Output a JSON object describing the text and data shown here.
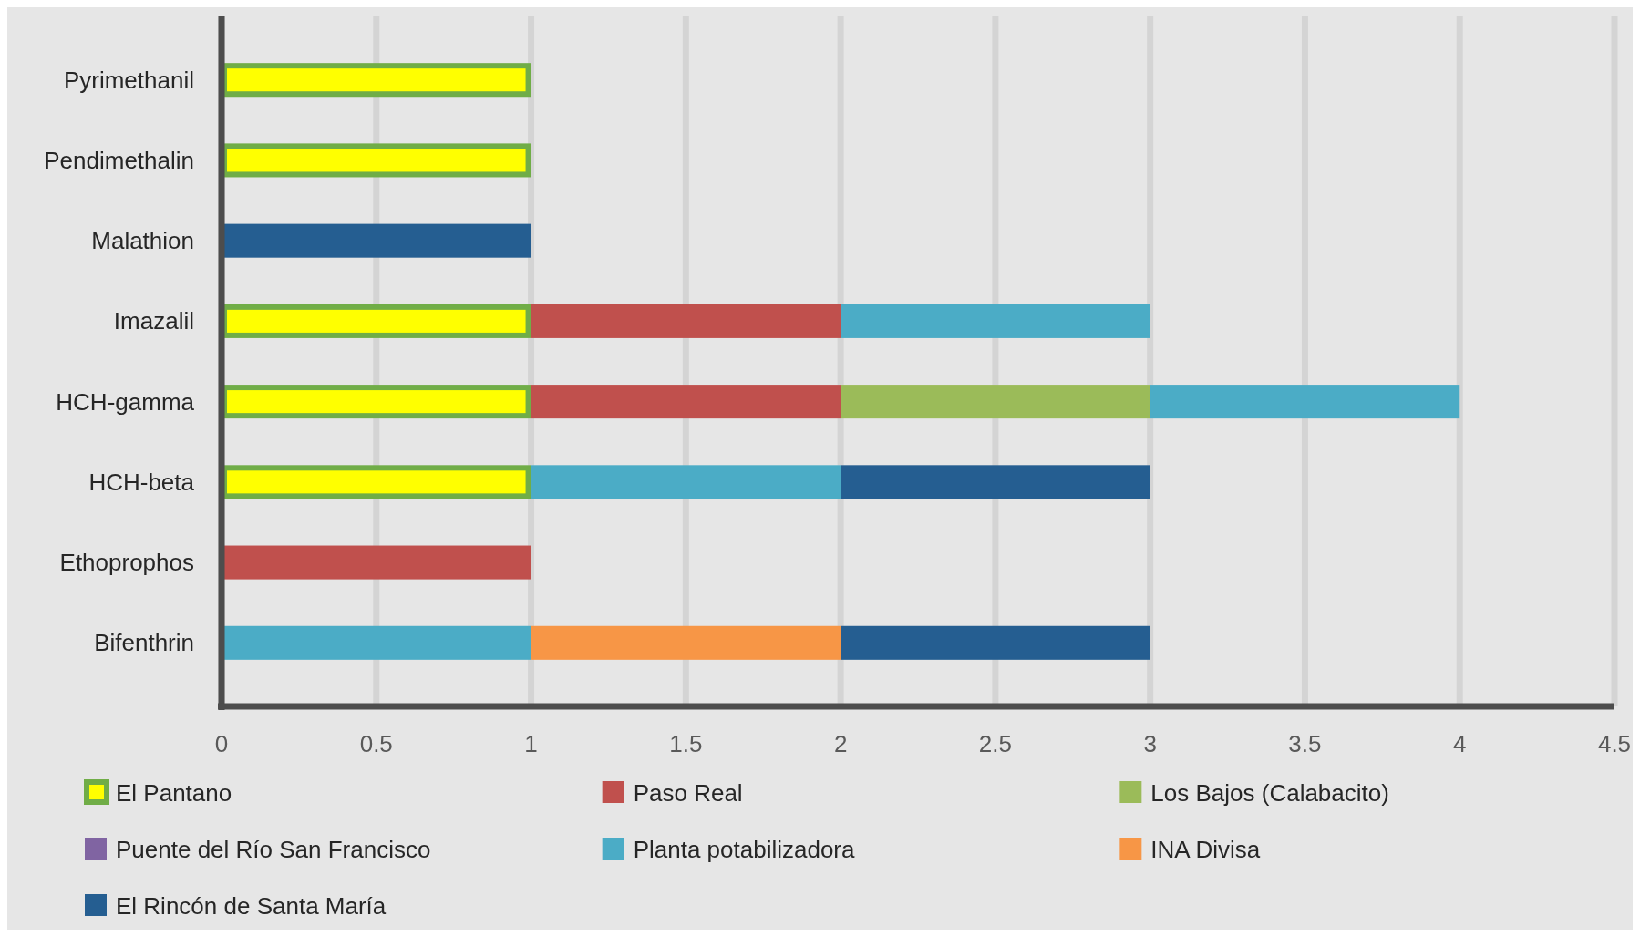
{
  "chart_data": {
    "type": "bar",
    "orientation": "horizontal",
    "stacked": true,
    "categories": [
      "Pyrimethanil",
      "Pendimethalin",
      "Malathion",
      "Imazalil",
      "HCH-gamma",
      "HCH-beta",
      "Ethoprophos",
      "Bifenthrin"
    ],
    "series": [
      {
        "name": "El Pantano",
        "color": "#ffff00",
        "values": [
          1,
          1,
          null,
          1,
          1,
          1,
          null,
          null
        ]
      },
      {
        "name": "Paso Real",
        "color": "#c0504d",
        "values": [
          null,
          null,
          null,
          1,
          1,
          null,
          1,
          null
        ]
      },
      {
        "name": "Los Bajos (Calabacito)",
        "color": "#9bbb59",
        "values": [
          null,
          null,
          null,
          null,
          1,
          null,
          null,
          null
        ]
      },
      {
        "name": "Puente del Río San Francisco",
        "color": "#8064a2",
        "values": [
          null,
          null,
          null,
          null,
          null,
          null,
          null,
          null
        ]
      },
      {
        "name": "Planta potabilizadora",
        "color": "#4bacc6",
        "values": [
          null,
          null,
          null,
          1,
          1,
          1,
          null,
          1
        ]
      },
      {
        "name": "INA Divisa",
        "color": "#f79646",
        "values": [
          null,
          null,
          null,
          null,
          null,
          null,
          null,
          1
        ]
      },
      {
        "name": "El Rincón de Santa María",
        "color": "#255e91",
        "values": [
          null,
          null,
          1,
          null,
          null,
          1,
          null,
          1
        ]
      }
    ],
    "xlim": [
      0,
      4.5
    ],
    "xticks": [
      0,
      0.5,
      1,
      1.5,
      2,
      2.5,
      3,
      3.5,
      4,
      4.5
    ],
    "grid": "x",
    "legend": "bottom"
  }
}
